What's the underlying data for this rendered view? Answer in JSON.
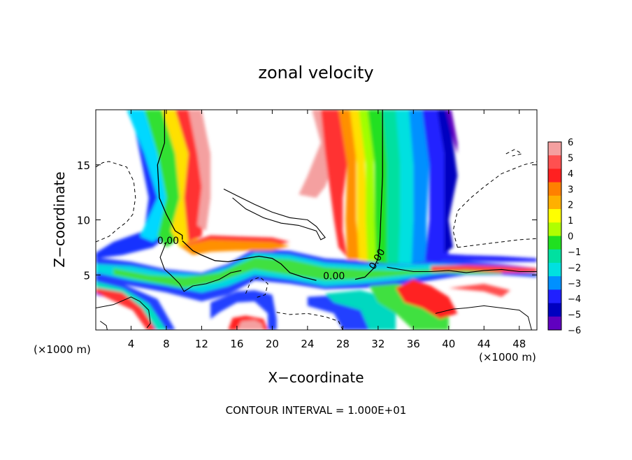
{
  "chart_data": {
    "type": "heatmap",
    "title": "zonal velocity",
    "xlabel": "X−coordinate",
    "ylabel": "Z−coordinate",
    "x_unit_left": "(×1000 m)",
    "x_unit_right": "(×1000 m)",
    "xlim": [
      0,
      50
    ],
    "ylim": [
      0,
      20
    ],
    "x_ticks": [
      4,
      8,
      12,
      16,
      20,
      24,
      28,
      32,
      36,
      40,
      44,
      48
    ],
    "y_ticks": [
      5,
      10,
      15
    ],
    "colorbar": {
      "min": -6,
      "max": 6,
      "ticks": [
        "6",
        "5",
        "4",
        "3",
        "2",
        "1",
        "0",
        "−1",
        "−2",
        "−3",
        "−4",
        "−5",
        "−6"
      ],
      "colors_top_to_bottom": [
        "#f4a0a0",
        "#ff5050",
        "#ff2020",
        "#ff8000",
        "#ffb000",
        "#ffff00",
        "#b0ff00",
        "#20e020",
        "#00e0a0",
        "#00e0e0",
        "#0090ff",
        "#2020ff",
        "#0000c0",
        "#6000c0"
      ]
    },
    "contour_labels": [
      {
        "text": "0.00",
        "x": 8.2,
        "z": 7.8
      },
      {
        "text": "0.00",
        "x": 27,
        "z": 4.6
      },
      {
        "text": "0.00",
        "x": 32.2,
        "z": 6.3
      }
    ],
    "footer": "CONTOUR INTERVAL = 1.000E+01"
  }
}
